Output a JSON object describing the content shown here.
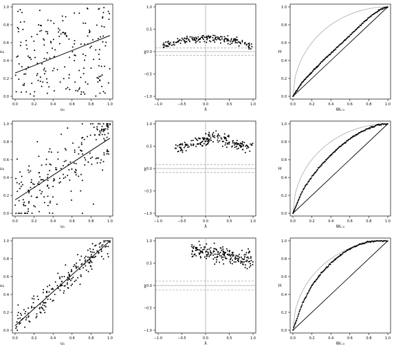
{
  "chart_data": [
    {
      "id": "r1c1",
      "type": "scatter",
      "xlabel": "u₁",
      "ylabel": "u₂",
      "xlim": [
        0,
        1
      ],
      "ylim": [
        0,
        1
      ],
      "xticks": [
        "0.0",
        "0.2",
        "0.4",
        "0.6",
        "0.8",
        "1.0"
      ],
      "yticks": [
        "0.0",
        "0.2",
        "0.4",
        "0.6",
        "0.8",
        "1.0"
      ],
      "pattern": "uniform",
      "points": [],
      "regression_line": [
        [
          0,
          0.26
        ],
        [
          1,
          0.68
        ]
      ]
    },
    {
      "id": "r1c2",
      "type": "scatter",
      "xlabel": "λ",
      "ylabel": "χ",
      "xlim": [
        -1,
        1
      ],
      "ylim": [
        -1,
        1
      ],
      "xticks": [
        "−1.0",
        "−0.5",
        "0.0",
        "0.5",
        "1.0"
      ],
      "yticks": [
        "−1.0",
        "−0.5",
        "0.0",
        "0.5",
        "1.0"
      ],
      "pattern": "chi-weak",
      "points": [],
      "hlines": [
        0.0
      ],
      "dashed_band": [
        -0.08,
        0.08
      ],
      "vline": 0
    },
    {
      "id": "r1c3",
      "type": "line",
      "xlabel": "W₁:ₙ",
      "ylabel": "H",
      "xlim": [
        0,
        1
      ],
      "ylim": [
        0,
        1
      ],
      "xticks": [
        "0.0",
        "0.2",
        "0.4",
        "0.6",
        "0.8",
        "1.0"
      ],
      "yticks": [
        "0.0",
        "0.2",
        "0.4",
        "0.6",
        "0.8",
        "1.0"
      ],
      "k_points": [
        [
          0.0,
          0.0
        ],
        [
          0.1,
          0.16
        ],
        [
          0.2,
          0.27
        ],
        [
          0.3,
          0.38
        ],
        [
          0.4,
          0.48
        ],
        [
          0.5,
          0.58
        ],
        [
          0.6,
          0.68
        ],
        [
          0.7,
          0.78
        ],
        [
          0.8,
          0.88
        ],
        [
          0.9,
          0.96
        ],
        [
          1.0,
          1.0
        ]
      ]
    },
    {
      "id": "r2c1",
      "type": "scatter",
      "xlabel": "u₁",
      "ylabel": "u₂",
      "xlim": [
        0,
        1
      ],
      "ylim": [
        0,
        1
      ],
      "xticks": [
        "0.0",
        "0.2",
        "0.4",
        "0.6",
        "0.8",
        "1.0"
      ],
      "yticks": [
        "0.0",
        "0.2",
        "0.4",
        "0.6",
        "0.8",
        "1.0"
      ],
      "pattern": "moderate",
      "points": [],
      "regression_line": [
        [
          0,
          0.15
        ],
        [
          1,
          0.84
        ]
      ]
    },
    {
      "id": "r2c2",
      "type": "scatter",
      "xlabel": "λ",
      "ylabel": "χ",
      "xlim": [
        -1,
        1
      ],
      "ylim": [
        -1,
        1
      ],
      "xticks": [
        "−1.0",
        "−0.5",
        "0.0",
        "0.5",
        "1.0"
      ],
      "yticks": [
        "−1.0",
        "−0.5",
        "0.0",
        "0.5",
        "1.0"
      ],
      "pattern": "chi-moderate",
      "points": [],
      "hlines": [
        0.0
      ],
      "dashed_band": [
        -0.09,
        0.09
      ],
      "vline": 0
    },
    {
      "id": "r2c3",
      "type": "line",
      "xlabel": "W₁:ₙ",
      "ylabel": "H",
      "xlim": [
        0,
        1
      ],
      "ylim": [
        0,
        1
      ],
      "xticks": [
        "0.0",
        "0.2",
        "0.4",
        "0.6",
        "0.8",
        "1.0"
      ],
      "yticks": [
        "0.0",
        "0.2",
        "0.4",
        "0.6",
        "0.8",
        "1.0"
      ],
      "k_points": [
        [
          0.0,
          0.0
        ],
        [
          0.1,
          0.25
        ],
        [
          0.2,
          0.41
        ],
        [
          0.3,
          0.54
        ],
        [
          0.4,
          0.65
        ],
        [
          0.5,
          0.75
        ],
        [
          0.6,
          0.83
        ],
        [
          0.7,
          0.9
        ],
        [
          0.8,
          0.95
        ],
        [
          0.9,
          0.99
        ],
        [
          1.0,
          1.0
        ]
      ]
    },
    {
      "id": "r3c1",
      "type": "scatter",
      "xlabel": "u₁",
      "ylabel": "u₂",
      "xlim": [
        0,
        1
      ],
      "ylim": [
        0,
        1
      ],
      "xticks": [
        "0.0",
        "0.2",
        "0.4",
        "0.6",
        "0.8",
        "1.0"
      ],
      "yticks": [
        "0.0",
        "0.2",
        "0.4",
        "0.6",
        "0.8",
        "1.0"
      ],
      "pattern": "strong",
      "points": [],
      "regression_line": [
        [
          0,
          0.05
        ],
        [
          1,
          1.0
        ]
      ]
    },
    {
      "id": "r3c2",
      "type": "scatter",
      "xlabel": "λ",
      "ylabel": "χ",
      "xlim": [
        -1,
        1
      ],
      "ylim": [
        -1,
        1
      ],
      "xticks": [
        "−1.0",
        "−0.5",
        "0.0",
        "0.5",
        "1.0"
      ],
      "yticks": [
        "−1.0",
        "−0.5",
        "0.0",
        "0.5",
        "1.0"
      ],
      "pattern": "chi-strong",
      "points": [],
      "hlines": [
        0.0
      ],
      "dashed_band": [
        -0.1,
        0.1
      ],
      "vline": 0
    },
    {
      "id": "r3c3",
      "type": "line",
      "xlabel": "W₁:ₙ",
      "ylabel": "H",
      "xlim": [
        0,
        1
      ],
      "ylim": [
        0,
        1
      ],
      "xticks": [
        "0.0",
        "0.2",
        "0.4",
        "0.6",
        "0.8",
        "1.0"
      ],
      "yticks": [
        "0.0",
        "0.2",
        "0.4",
        "0.6",
        "0.8",
        "1.0"
      ],
      "k_points": [
        [
          0.0,
          0.0
        ],
        [
          0.1,
          0.3
        ],
        [
          0.2,
          0.5
        ],
        [
          0.3,
          0.64
        ],
        [
          0.4,
          0.75
        ],
        [
          0.5,
          0.84
        ],
        [
          0.6,
          0.91
        ],
        [
          0.7,
          0.96
        ],
        [
          0.8,
          0.99
        ],
        [
          0.9,
          1.0
        ],
        [
          1.0,
          1.0
        ]
      ]
    }
  ]
}
